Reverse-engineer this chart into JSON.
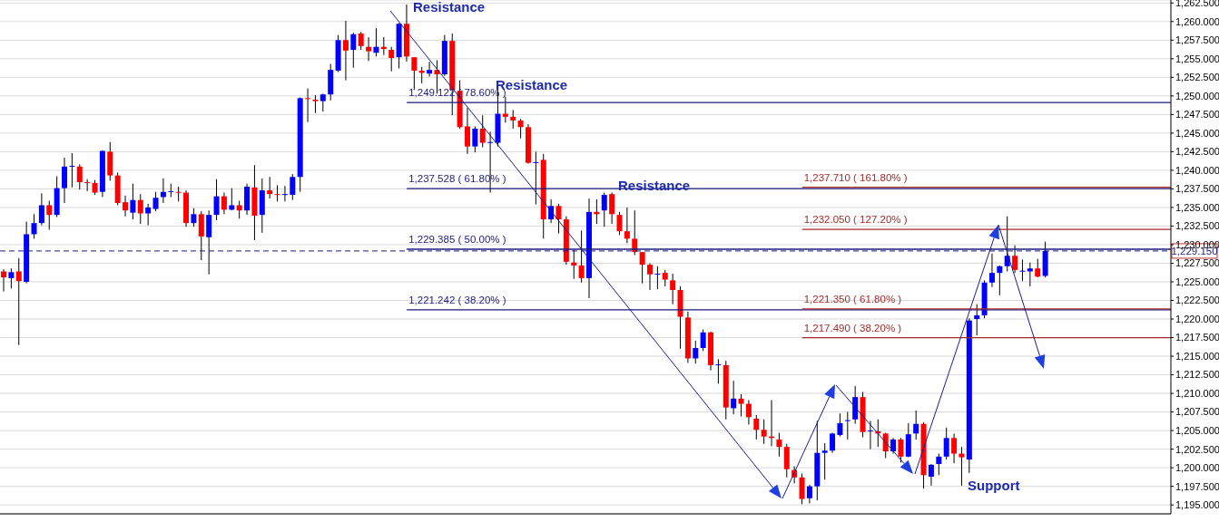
{
  "chart_data": {
    "type": "candlestick",
    "categories": [
      null,
      null,
      null,
      null,
      null,
      null,
      null,
      null,
      null,
      null,
      null,
      null,
      null,
      null,
      null,
      null,
      null,
      null,
      null,
      null,
      null,
      null,
      null,
      null,
      null,
      null,
      null,
      null,
      null,
      null,
      null,
      null,
      null,
      null,
      null,
      null,
      null,
      null,
      null,
      null,
      null,
      null,
      null,
      null,
      null,
      null,
      null,
      null,
      null,
      null,
      null,
      null,
      null,
      null,
      null,
      null,
      null,
      null,
      null,
      null,
      null,
      null,
      null,
      null,
      null,
      null,
      null,
      null,
      null,
      null,
      null,
      null,
      null,
      null,
      null,
      null,
      null,
      null,
      null,
      null,
      null,
      null,
      null,
      null,
      null,
      null,
      null,
      null,
      null,
      null,
      null,
      null,
      null,
      null,
      null,
      null,
      null,
      null,
      null,
      null,
      null,
      null,
      null,
      null,
      null,
      null,
      null,
      null,
      null,
      null,
      null,
      null,
      null,
      null,
      null,
      null,
      null,
      null,
      null,
      null,
      null,
      null,
      null,
      null,
      null,
      null,
      null,
      null,
      null,
      null,
      null,
      null,
      null,
      null,
      null,
      null,
      null,
      null,
      null,
      null,
      null,
      null,
      null,
      null,
      null,
      null,
      null,
      null,
      null,
      null,
      null,
      null,
      null,
      null
    ],
    "ohlc": [
      [
        1226.4,
        1226.7,
        1223.7,
        1225.6
      ],
      [
        1225.5,
        1226.8,
        1224.1,
        1226.3
      ],
      [
        1226.4,
        1228.2,
        1216.5,
        1225.1
      ],
      [
        1225.0,
        1233.1,
        1224.8,
        1231.4
      ],
      [
        1231.4,
        1234.1,
        1230.8,
        1232.9
      ],
      [
        1232.9,
        1236.9,
        1232.6,
        1235.3
      ],
      [
        1235.3,
        1235.9,
        1232.0,
        1234.0
      ],
      [
        1234.0,
        1239.2,
        1233.7,
        1237.6
      ],
      [
        1237.6,
        1241.7,
        1235.6,
        1240.5
      ],
      [
        1240.5,
        1242.3,
        1237.7,
        1240.6
      ],
      [
        1240.5,
        1240.8,
        1237.4,
        1238.4
      ],
      [
        1238.4,
        1238.8,
        1237.2,
        1238.3
      ],
      [
        1238.3,
        1238.7,
        1236.7,
        1237.0
      ],
      [
        1237.1,
        1242.7,
        1236.4,
        1242.6
      ],
      [
        1242.5,
        1243.8,
        1238.6,
        1239.3
      ],
      [
        1239.3,
        1239.7,
        1235.3,
        1235.6
      ],
      [
        1235.7,
        1236.6,
        1233.8,
        1234.6
      ],
      [
        1234.3,
        1238.2,
        1233.4,
        1236.0
      ],
      [
        1236.0,
        1236.8,
        1232.8,
        1234.2
      ],
      [
        1234.2,
        1235.5,
        1232.6,
        1235.0
      ],
      [
        1234.8,
        1237.1,
        1234.5,
        1236.3
      ],
      [
        1236.4,
        1238.9,
        1235.6,
        1237.1
      ],
      [
        1237.1,
        1238.2,
        1236.4,
        1237.2
      ],
      [
        1237.1,
        1237.8,
        1235.8,
        1237.0
      ],
      [
        1237.0,
        1237.3,
        1232.4,
        1232.9
      ],
      [
        1232.9,
        1234.9,
        1232.4,
        1234.1
      ],
      [
        1234.1,
        1234.5,
        1227.9,
        1231.1
      ],
      [
        1231.0,
        1234.6,
        1226.0,
        1234.0
      ],
      [
        1234.0,
        1238.8,
        1233.3,
        1236.5
      ],
      [
        1236.5,
        1237.0,
        1234.1,
        1234.7
      ],
      [
        1234.7,
        1237.6,
        1234.6,
        1235.3
      ],
      [
        1235.3,
        1235.9,
        1233.5,
        1234.6
      ],
      [
        1234.6,
        1238.2,
        1234.0,
        1237.8
      ],
      [
        1237.7,
        1240.7,
        1230.6,
        1233.9
      ],
      [
        1234.0,
        1238.9,
        1231.6,
        1237.3
      ],
      [
        1237.3,
        1239.1,
        1236.2,
        1236.8
      ],
      [
        1236.8,
        1238.0,
        1235.8,
        1236.7
      ],
      [
        1236.7,
        1237.9,
        1235.8,
        1236.8
      ],
      [
        1236.7,
        1239.5,
        1236.0,
        1239.1
      ],
      [
        1239.1,
        1249.8,
        1237.1,
        1249.7
      ],
      [
        1249.7,
        1251.0,
        1246.5,
        1249.6
      ],
      [
        1249.5,
        1250.1,
        1247.7,
        1249.3
      ],
      [
        1249.3,
        1250.3,
        1247.9,
        1250.2
      ],
      [
        1250.2,
        1254.3,
        1249.4,
        1253.5
      ],
      [
        1253.4,
        1258.2,
        1253.2,
        1257.5
      ],
      [
        1257.5,
        1260.1,
        1252.1,
        1256.1
      ],
      [
        1256.2,
        1258.5,
        1253.8,
        1258.3
      ],
      [
        1258.4,
        1258.6,
        1256.2,
        1256.7
      ],
      [
        1256.6,
        1257.9,
        1254.7,
        1256.0
      ],
      [
        1255.8,
        1259.1,
        1255.3,
        1256.6
      ],
      [
        1256.6,
        1257.9,
        1255.5,
        1256.3
      ],
      [
        1256.2,
        1256.6,
        1253.3,
        1255.1
      ],
      [
        1255.2,
        1259.8,
        1253.7,
        1259.7
      ],
      [
        1259.7,
        1262.3,
        1254.6,
        1255.3
      ],
      [
        1255.2,
        1255.2,
        1250.8,
        1253.4
      ],
      [
        1253.4,
        1253.9,
        1251.7,
        1253.1
      ],
      [
        1253.0,
        1254.6,
        1252.6,
        1253.5
      ],
      [
        1253.5,
        1254.8,
        1250.3,
        1252.9
      ],
      [
        1252.9,
        1258.2,
        1252.7,
        1257.4
      ],
      [
        1257.4,
        1258.4,
        1247.4,
        1250.8
      ],
      [
        1250.7,
        1252.1,
        1245.6,
        1245.8
      ],
      [
        1245.9,
        1248.4,
        1242.2,
        1243.2
      ],
      [
        1243.2,
        1245.9,
        1242.4,
        1245.6
      ],
      [
        1245.6,
        1247.4,
        1243.1,
        1243.7
      ],
      [
        1243.7,
        1245.2,
        1237.0,
        1243.8
      ],
      [
        1243.7,
        1250.9,
        1243.2,
        1247.6
      ],
      [
        1247.6,
        1249.9,
        1246.4,
        1247.2
      ],
      [
        1247.2,
        1248.1,
        1245.6,
        1246.7
      ],
      [
        1246.7,
        1246.9,
        1244.3,
        1245.8
      ],
      [
        1245.8,
        1246.2,
        1240.9,
        1241.0
      ],
      [
        1241.0,
        1242.5,
        1235.4,
        1241.1
      ],
      [
        1241.4,
        1242.2,
        1230.8,
        1233.4
      ],
      [
        1233.4,
        1236.1,
        1232.9,
        1235.2
      ],
      [
        1235.2,
        1235.5,
        1231.5,
        1233.4
      ],
      [
        1233.4,
        1233.8,
        1227.3,
        1227.7
      ],
      [
        1227.6,
        1229.3,
        1225.4,
        1227.2
      ],
      [
        1227.2,
        1231.9,
        1224.9,
        1225.5
      ],
      [
        1225.5,
        1236.2,
        1222.8,
        1234.4
      ],
      [
        1234.4,
        1236.1,
        1232.8,
        1234.1
      ],
      [
        1234.6,
        1237.0,
        1232.4,
        1236.7
      ],
      [
        1236.8,
        1237.0,
        1232.8,
        1234.1
      ],
      [
        1234.0,
        1234.4,
        1231.3,
        1231.8
      ],
      [
        1231.8,
        1235.0,
        1230.2,
        1230.8
      ],
      [
        1230.8,
        1234.6,
        1228.6,
        1229.0
      ],
      [
        1229.0,
        1229.0,
        1224.8,
        1227.3
      ],
      [
        1227.3,
        1227.5,
        1223.9,
        1226.0
      ],
      [
        1226.0,
        1227.1,
        1224.0,
        1226.1
      ],
      [
        1226.2,
        1226.6,
        1224.4,
        1225.3
      ],
      [
        1225.2,
        1226.1,
        1222.0,
        1223.9
      ],
      [
        1223.9,
        1224.4,
        1216.0,
        1220.3
      ],
      [
        1220.2,
        1221.0,
        1214.1,
        1214.7
      ],
      [
        1214.7,
        1217.1,
        1214.0,
        1216.1
      ],
      [
        1216.1,
        1218.6,
        1215.7,
        1218.2
      ],
      [
        1218.2,
        1218.3,
        1213.1,
        1213.8
      ],
      [
        1213.8,
        1214.6,
        1211.3,
        1213.9
      ],
      [
        1213.8,
        1214.4,
        1206.5,
        1208.1
      ],
      [
        1208.0,
        1211.7,
        1207.2,
        1209.3
      ],
      [
        1209.3,
        1209.9,
        1206.9,
        1208.6
      ],
      [
        1208.6,
        1209.1,
        1205.8,
        1206.8
      ],
      [
        1206.6,
        1207.1,
        1203.8,
        1205.1
      ],
      [
        1205.1,
        1206.5,
        1203.2,
        1204.2
      ],
      [
        1204.2,
        1209.1,
        1202.9,
        1204.0
      ],
      [
        1203.8,
        1204.7,
        1201.5,
        1202.8
      ],
      [
        1202.8,
        1203.2,
        1198.7,
        1199.8
      ],
      [
        1199.7,
        1200.2,
        1197.9,
        1198.7
      ],
      [
        1198.7,
        1199.2,
        1195.1,
        1195.8
      ],
      [
        1195.9,
        1197.7,
        1195.2,
        1197.5
      ],
      [
        1197.5,
        1206.3,
        1195.6,
        1202.0
      ],
      [
        1202.0,
        1203.3,
        1198.4,
        1202.3
      ],
      [
        1202.3,
        1204.7,
        1202.0,
        1204.6
      ],
      [
        1204.4,
        1207.3,
        1204.2,
        1206.0
      ],
      [
        1206.3,
        1207.5,
        1203.8,
        1206.4
      ],
      [
        1206.5,
        1211.0,
        1205.9,
        1209.5
      ],
      [
        1209.5,
        1210.2,
        1204.1,
        1204.8
      ],
      [
        1204.9,
        1206.3,
        1202.5,
        1205.0
      ],
      [
        1204.9,
        1206.5,
        1202.8,
        1204.6
      ],
      [
        1204.6,
        1204.7,
        1201.3,
        1202.2
      ],
      [
        1202.2,
        1204.0,
        1201.9,
        1203.8
      ],
      [
        1203.8,
        1204.0,
        1200.7,
        1201.5
      ],
      [
        1201.5,
        1206.0,
        1201.4,
        1204.5
      ],
      [
        1204.6,
        1207.7,
        1203.8,
        1205.9
      ],
      [
        1205.9,
        1206.1,
        1197.2,
        1199.0
      ],
      [
        1198.8,
        1200.5,
        1197.6,
        1200.4
      ],
      [
        1200.5,
        1201.9,
        1199.0,
        1201.5
      ],
      [
        1201.5,
        1205.4,
        1201.1,
        1204.0
      ],
      [
        1204.0,
        1204.6,
        1200.6,
        1201.9
      ],
      [
        1201.9,
        1202.8,
        1197.6,
        1201.4
      ],
      [
        1201.1,
        1220.1,
        1199.3,
        1219.8
      ],
      [
        1220.0,
        1222.0,
        1217.8,
        1220.5
      ],
      [
        1220.5,
        1225.2,
        1220.1,
        1224.9
      ],
      [
        1224.9,
        1228.8,
        1224.3,
        1226.2
      ],
      [
        1226.2,
        1227.2,
        1223.2,
        1227.1
      ],
      [
        1227.1,
        1233.8,
        1226.4,
        1228.5
      ],
      [
        1228.5,
        1229.9,
        1226.2,
        1226.6
      ],
      [
        1226.4,
        1228.0,
        1225.1,
        1226.5
      ],
      [
        1226.4,
        1227.6,
        1224.4,
        1226.8
      ],
      [
        1226.8,
        1228.1,
        1225.6,
        1225.7
      ],
      [
        1225.8,
        1230.4,
        1225.6,
        1229.15
      ],
      null,
      null,
      null,
      null,
      null,
      null,
      null,
      null,
      null,
      null,
      null,
      null,
      null,
      null,
      null,
      null
    ],
    "colors": [
      "#ff0000",
      "#0000ff",
      "#ff0000",
      "#0000ff",
      "#0000ff",
      "#0000ff",
      "#ff0000",
      "#0000ff",
      "#0000ff",
      "#0000ff",
      "#ff0000",
      "#ff0000",
      "#ff0000",
      "#0000ff",
      "#ff0000",
      "#ff0000",
      "#ff0000",
      "#0000ff",
      "#ff0000",
      "#0000ff",
      "#0000ff",
      "#0000ff",
      "#0000ff",
      "#ff0000",
      "#ff0000",
      "#0000ff",
      "#ff0000",
      "#0000ff",
      "#0000ff",
      "#ff0000",
      "#0000ff",
      "#ff0000",
      "#0000ff",
      "#ff0000",
      "#0000ff",
      "#ff0000",
      "#ff0000",
      "#0000ff",
      "#0000ff",
      "#0000ff",
      "#ff0000",
      "#ff0000",
      "#0000ff",
      "#0000ff",
      "#0000ff",
      "#ff0000",
      "#0000ff",
      "#ff0000",
      "#ff0000",
      "#0000ff",
      "#ff0000",
      "#ff0000",
      "#0000ff",
      "#ff0000",
      "#ff0000",
      "#ff0000",
      "#0000ff",
      "#ff0000",
      "#0000ff",
      "#ff0000",
      "#ff0000",
      "#ff0000",
      "#0000ff",
      "#ff0000",
      "#0000ff",
      "#0000ff",
      "#ff0000",
      "#ff0000",
      "#ff0000",
      "#ff0000",
      "#0000ff",
      "#ff0000",
      "#0000ff",
      "#ff0000",
      "#ff0000",
      "#ff0000",
      "#ff0000",
      "#0000ff",
      "#ff0000",
      "#0000ff",
      "#ff0000",
      "#ff0000",
      "#ff0000",
      "#ff0000",
      "#ff0000",
      "#ff0000",
      "#0000ff",
      "#ff0000",
      "#ff0000",
      "#ff0000",
      "#ff0000",
      "#0000ff",
      "#0000ff",
      "#ff0000",
      "#0000ff",
      "#ff0000",
      "#0000ff",
      "#ff0000",
      "#ff0000",
      "#ff0000",
      "#ff0000",
      "#ff0000",
      "#ff0000",
      "#ff0000",
      "#ff0000",
      "#ff0000",
      "#0000ff",
      "#0000ff",
      "#0000ff",
      "#0000ff",
      "#0000ff",
      "#0000ff",
      "#0000ff",
      "#ff0000",
      "#0000ff",
      "#ff0000",
      "#ff0000",
      "#0000ff",
      "#ff0000",
      "#0000ff",
      "#0000ff",
      "#ff0000",
      "#0000ff",
      "#0000ff",
      "#0000ff",
      "#ff0000",
      "#ff0000",
      "#0000ff",
      "#0000ff",
      "#0000ff",
      "#0000ff",
      "#0000ff",
      "#0000ff",
      "#ff0000",
      "#0000ff",
      "#0000ff",
      "#ff0000",
      "#0000ff",
      null,
      null,
      null,
      null,
      null,
      null,
      null,
      null,
      null,
      null,
      null,
      null,
      null,
      null,
      null,
      null
    ],
    "ylim": [
      1193.8,
      1262.9
    ],
    "yticks": [
      {
        "value": 1195,
        "label": "1,195.000"
      },
      {
        "value": 1197.5,
        "label": "1,197.500"
      },
      {
        "value": 1200,
        "label": "1,200.000"
      },
      {
        "value": 1202.5,
        "label": "1,202.500"
      },
      {
        "value": 1205,
        "label": "1,205.000"
      },
      {
        "value": 1207.5,
        "label": "1,207.500"
      },
      {
        "value": 1210,
        "label": "1,210.000"
      },
      {
        "value": 1212.5,
        "label": "1,212.500"
      },
      {
        "value": 1215,
        "label": "1,215.000"
      },
      {
        "value": 1217.5,
        "label": "1,217.500"
      },
      {
        "value": 1220,
        "label": "1,220.000"
      },
      {
        "value": 1222.5,
        "label": "1,222.500"
      },
      {
        "value": 1225,
        "label": "1,225.000"
      },
      {
        "value": 1227.5,
        "label": "1,227.500"
      },
      {
        "value": 1230,
        "label": "1,230.000"
      },
      {
        "value": 1232.5,
        "label": "1,232.500"
      },
      {
        "value": 1235,
        "label": "1,235.000"
      },
      {
        "value": 1237.5,
        "label": "1,237.500"
      },
      {
        "value": 1240,
        "label": "1,240.000"
      },
      {
        "value": 1242.5,
        "label": "1,242.500"
      },
      {
        "value": 1245,
        "label": "1,245.000"
      },
      {
        "value": 1247.5,
        "label": "1,247.500"
      },
      {
        "value": 1250,
        "label": "1,250.000"
      },
      {
        "value": 1252.5,
        "label": "1,252.500"
      },
      {
        "value": 1255,
        "label": "1,255.000"
      },
      {
        "value": 1257.5,
        "label": "1,257.500"
      },
      {
        "value": 1260,
        "label": "1,260.000"
      },
      {
        "value": 1262.5,
        "label": "1,262.500"
      }
    ],
    "grid": "y",
    "tick_labels": "y",
    "ref_lines": [
      {
        "axis": "y",
        "value": 1249.122,
        "label": "1,249.122 ( 78.60% )",
        "color": "#1a1a80"
      },
      {
        "axis": "y",
        "value": 1237.528,
        "label": "1,237.528 ( 61.80% )",
        "color": "#1a1a80"
      },
      {
        "axis": "y",
        "value": 1229.385,
        "label": "1,229.385 ( 50.00% )",
        "color": "#1a1a80"
      },
      {
        "axis": "y",
        "value": 1221.242,
        "label": "1,221.242 ( 38.20% )",
        "color": "#1a1a80"
      },
      {
        "axis": "y",
        "value": 1237.71,
        "label": "1,237.710 ( 161.80% )",
        "color": "#a52a2a"
      },
      {
        "axis": "y",
        "value": 1232.05,
        "label": "1,232.050 ( 127.20% )",
        "color": "#a52a2a"
      },
      {
        "axis": "y",
        "value": 1221.35,
        "label": "1,221.350 ( 61.80% )",
        "color": "#a52a2a"
      },
      {
        "axis": "y",
        "value": 1217.49,
        "label": "1,217.490 ( 38.20% )",
        "color": "#a52a2a"
      },
      {
        "axis": "y",
        "value": 1229.15,
        "label": "1,229.150",
        "color": "#1a1a80",
        "line_style": "dashed"
      }
    ],
    "annotations": [
      "Resistance",
      "Resistance",
      "Resistance",
      "Support"
    ]
  }
}
